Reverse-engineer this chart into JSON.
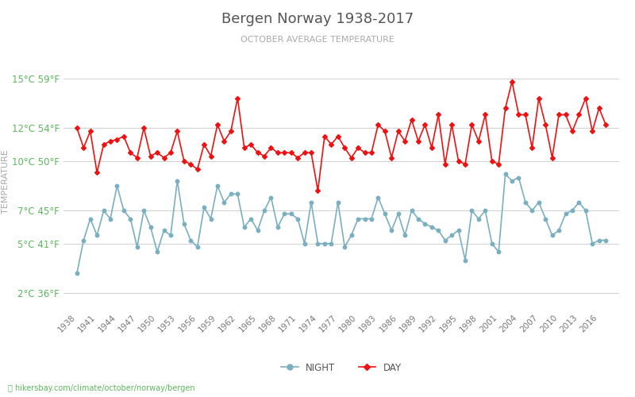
{
  "title": "Bergen Norway 1938-2017",
  "subtitle": "OCTOBER AVERAGE TEMPERATURE",
  "ylabel": "TEMPERATURE",
  "footer": "hikersbay.com/climate/october/norway/bergen",
  "years": [
    1938,
    1939,
    1940,
    1941,
    1942,
    1943,
    1944,
    1945,
    1946,
    1947,
    1948,
    1949,
    1950,
    1951,
    1952,
    1953,
    1954,
    1955,
    1956,
    1957,
    1958,
    1959,
    1960,
    1961,
    1962,
    1963,
    1964,
    1965,
    1966,
    1967,
    1968,
    1969,
    1970,
    1971,
    1972,
    1973,
    1974,
    1975,
    1976,
    1977,
    1978,
    1979,
    1980,
    1981,
    1982,
    1983,
    1984,
    1985,
    1986,
    1987,
    1988,
    1989,
    1990,
    1991,
    1992,
    1993,
    1994,
    1995,
    1996,
    1997,
    1998,
    1999,
    2000,
    2001,
    2002,
    2003,
    2004,
    2005,
    2006,
    2007,
    2008,
    2009,
    2010,
    2011,
    2012,
    2013,
    2014,
    2015,
    2016,
    2017
  ],
  "day": [
    12.0,
    10.8,
    11.8,
    9.3,
    11.0,
    11.2,
    11.3,
    11.5,
    10.5,
    10.2,
    12.0,
    10.3,
    10.5,
    10.2,
    10.5,
    11.8,
    10.0,
    9.8,
    9.5,
    11.0,
    10.3,
    12.2,
    11.2,
    11.8,
    13.8,
    10.8,
    11.0,
    10.5,
    10.3,
    10.8,
    10.5,
    10.5,
    10.5,
    10.2,
    10.5,
    10.5,
    8.2,
    11.5,
    11.0,
    11.5,
    10.8,
    10.2,
    10.8,
    10.5,
    10.5,
    12.2,
    11.8,
    10.2,
    11.8,
    11.2,
    12.5,
    11.2,
    12.2,
    10.8,
    12.8,
    9.8,
    12.2,
    10.0,
    9.8,
    12.2,
    11.2,
    12.8,
    10.0,
    9.8,
    13.2,
    14.8,
    12.8,
    12.8,
    10.8,
    13.8,
    12.2,
    10.2,
    12.8,
    12.8,
    11.8,
    12.8,
    13.8,
    11.8,
    13.2,
    12.2
  ],
  "night": [
    3.2,
    5.2,
    6.5,
    5.5,
    7.0,
    6.5,
    8.5,
    7.0,
    6.5,
    4.8,
    7.0,
    6.0,
    4.5,
    5.8,
    5.5,
    8.8,
    6.2,
    5.2,
    4.8,
    7.2,
    6.5,
    8.5,
    7.5,
    8.0,
    8.0,
    6.0,
    6.5,
    5.8,
    7.0,
    7.8,
    6.0,
    6.8,
    6.8,
    6.5,
    5.0,
    7.5,
    5.0,
    5.0,
    5.0,
    7.5,
    4.8,
    5.5,
    6.5,
    6.5,
    6.5,
    7.8,
    6.8,
    5.8,
    6.8,
    5.5,
    7.0,
    6.5,
    6.2,
    6.0,
    5.8,
    5.2,
    5.5,
    5.8,
    4.0,
    7.0,
    6.5,
    7.0,
    5.0,
    4.5,
    9.2,
    8.8,
    9.0,
    7.5,
    7.0,
    7.5,
    6.5,
    5.5,
    5.8,
    6.8,
    7.0,
    7.5,
    7.0,
    5.0,
    5.2,
    5.2
  ],
  "day_color": "#ee1111",
  "night_color": "#7aafc0",
  "grid_color": "#d0d0d0",
  "bg_color": "#ffffff",
  "tick_label_color": "#5cb85c",
  "ytick_color": "#777777",
  "ylabel_color": "#aaaaaa",
  "title_color": "#555555",
  "subtitle_color": "#aaaaaa",
  "yticks_celsius": [
    2,
    5,
    7,
    10,
    12,
    15
  ],
  "yticks_fahrenheit": [
    36,
    41,
    45,
    50,
    54,
    59
  ],
  "ylim": [
    1.0,
    16.5
  ],
  "footer_color": "#5cb85c",
  "xtick_start": 1938,
  "xtick_end": 2017,
  "xtick_step": 3
}
